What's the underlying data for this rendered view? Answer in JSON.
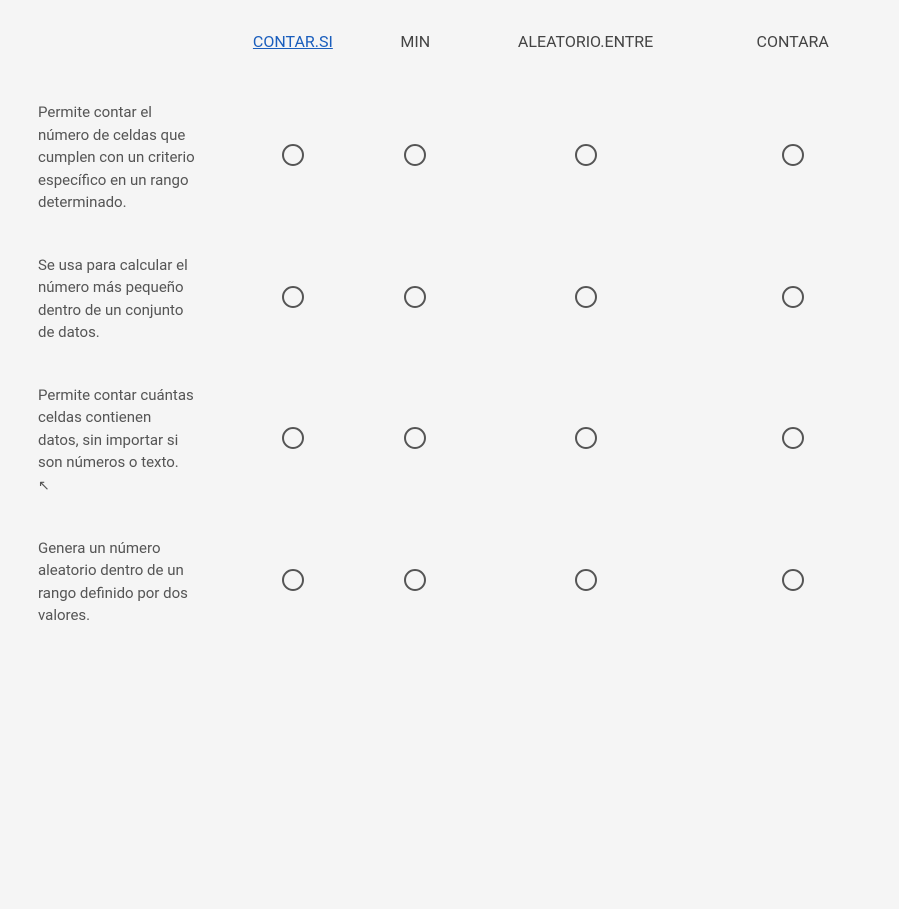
{
  "columns": [
    {
      "label": "CONTAR.SI",
      "link": true
    },
    {
      "label": "MIN",
      "link": false
    },
    {
      "label": "ALEATORIO.ENTRE",
      "link": false
    },
    {
      "label": "CONTARA",
      "link": false
    }
  ],
  "rows": [
    {
      "description": "Permite contar el número de celdas que cumplen con un criterio específico en un rango determinado.",
      "hasCursor": false
    },
    {
      "description": "Se usa para calcular el número más pequeño dentro de un conjunto de datos.",
      "hasCursor": false
    },
    {
      "description": "Permite contar cuántas celdas contienen datos, sin importar si son números o texto.",
      "hasCursor": true
    },
    {
      "description": "Genera un número aleatorio dentro de un rango definido por dos valores.",
      "hasCursor": false
    }
  ],
  "styles": {
    "backgroundColor": "#f5f5f5",
    "textColor": "#555555",
    "linkColor": "#1a5ebd",
    "radioBorderColor": "#555555",
    "radioSize": 22,
    "fontSize": 15,
    "headerFontSize": 16
  }
}
